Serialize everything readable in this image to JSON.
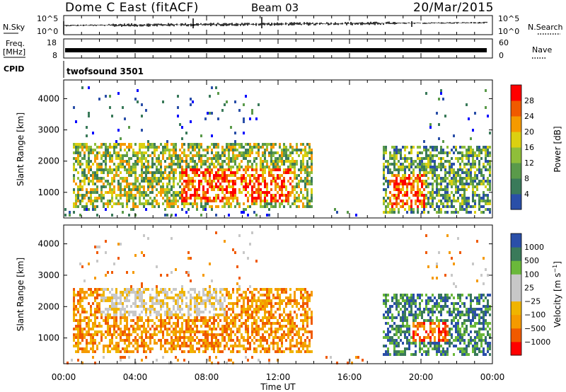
{
  "header": {
    "title": "Dome C East (fitACF)",
    "beam": "Beam 03",
    "date": "20/Mar/2015"
  },
  "nsky_panel": {
    "label": "N.Sky",
    "right_label": "N.Search",
    "left_ticks": [
      "10^5",
      "10^0"
    ],
    "right_ticks": [
      "10^5",
      "10^0"
    ]
  },
  "freq_panel": {
    "label_line1": "Freq.",
    "label_line2": "[MHz]",
    "right_label": "Nave",
    "left_ticks": [
      "18",
      "8"
    ],
    "right_ticks": [
      "60",
      "0"
    ]
  },
  "cpid": {
    "label": "CPID",
    "value": "twofsound 3501"
  },
  "time_axis": {
    "label": "Time UT",
    "ticks": [
      "00:00",
      "04:00",
      "08:00",
      "12:00",
      "16:00",
      "20:00",
      "00:00"
    ]
  },
  "colors": {
    "power": [
      "#0000ff",
      "#2a4fa8",
      "#3a7a5a",
      "#5a9a4a",
      "#8fbe3a",
      "#dcd010",
      "#f59a00",
      "#f05a00",
      "#ff0000"
    ],
    "velocity": [
      "#ff0000",
      "#f05a00",
      "#f59a00",
      "#f0b400",
      "#c8c8c8",
      "#c8c8c8",
      "#6ab83a",
      "#3a7a5a",
      "#2a4fa8",
      "#0000c8"
    ]
  },
  "chart_data": [
    {
      "type": "heatmap",
      "name": "power",
      "ylabel": "Slant Range [km]",
      "yticks": [
        1000,
        2000,
        3000,
        4000
      ],
      "ylim": [
        180,
        4600
      ],
      "xlim": [
        0,
        24
      ],
      "colorbar_label": "Power [dB]",
      "colorbar_ticks": [
        4,
        8,
        12,
        16,
        20,
        24,
        28
      ],
      "colorbar_range": [
        0,
        32
      ],
      "features": [
        {
          "t": [
            0.5,
            13.9
          ],
          "range": [
            500,
            2600
          ],
          "level": 14
        },
        {
          "t": [
            6.5,
            12.8
          ],
          "range": [
            700,
            1800
          ],
          "level": 26
        },
        {
          "t": [
            17.8,
            24.0
          ],
          "range": [
            400,
            2500
          ],
          "level": 13
        },
        {
          "t": [
            18.1,
            20.2
          ],
          "range": [
            500,
            1600
          ],
          "level": 28
        }
      ]
    },
    {
      "type": "heatmap",
      "name": "velocity",
      "ylabel": "Slant Range [km]",
      "yticks": [
        1000,
        2000,
        3000,
        4000
      ],
      "ylim": [
        180,
        4600
      ],
      "xlim": [
        0,
        24
      ],
      "colorbar_label": "Velocity [m s^-1]",
      "colorbar_ticks": [
        "1000",
        "500",
        "100",
        "25",
        "−25",
        "−100",
        "−500",
        "−1000"
      ],
      "features": [
        {
          "t": [
            0.5,
            13.9
          ],
          "range": [
            600,
            2600
          ],
          "level": -100
        },
        {
          "t": [
            2.0,
            9.0
          ],
          "range": [
            1700,
            2600
          ],
          "level": 0
        },
        {
          "t": [
            17.8,
            24.0
          ],
          "range": [
            500,
            2500
          ],
          "level": 500
        },
        {
          "t": [
            19.5,
            21.5
          ],
          "range": [
            900,
            1600
          ],
          "level": -500
        }
      ]
    }
  ]
}
